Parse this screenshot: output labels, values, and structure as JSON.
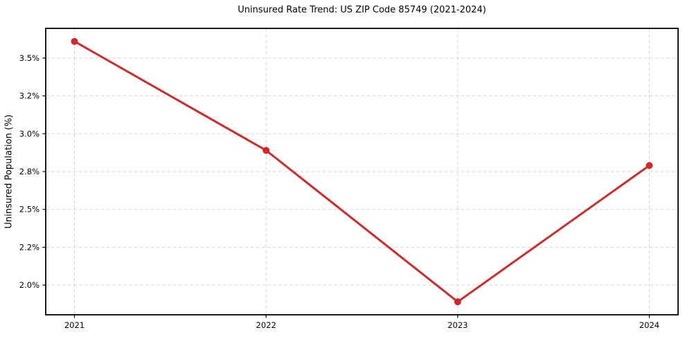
{
  "chart_data": {
    "type": "line",
    "title": "Uninsured Rate Trend: US ZIP Code 85749 (2021-2024)",
    "xlabel": "",
    "ylabel": "Uninsured Population (%)",
    "x": [
      2021,
      2022,
      2023,
      2024
    ],
    "values": [
      3.61,
      2.89,
      1.89,
      2.79
    ],
    "x_tick_labels": [
      "2021",
      "2022",
      "2023",
      "2024"
    ],
    "y_ticks": [
      {
        "value": 2.0,
        "label": "2.0%"
      },
      {
        "value": 2.25,
        "label": "2.2%"
      },
      {
        "value": 2.5,
        "label": "2.5%"
      },
      {
        "value": 2.75,
        "label": "2.8%"
      },
      {
        "value": 3.0,
        "label": "3.0%"
      },
      {
        "value": 3.25,
        "label": "3.2%"
      },
      {
        "value": 3.5,
        "label": "3.5%"
      }
    ],
    "xlim": [
      2020.85,
      2024.15
    ],
    "ylim": [
      1.804,
      3.696
    ],
    "grid": true,
    "grid_style": "dashed",
    "legend": "none",
    "line_color": "#d62728",
    "marker": "circle",
    "grid_color": "#cfcfcf",
    "spine_color": "#000000",
    "background_color": "#ffffff"
  }
}
